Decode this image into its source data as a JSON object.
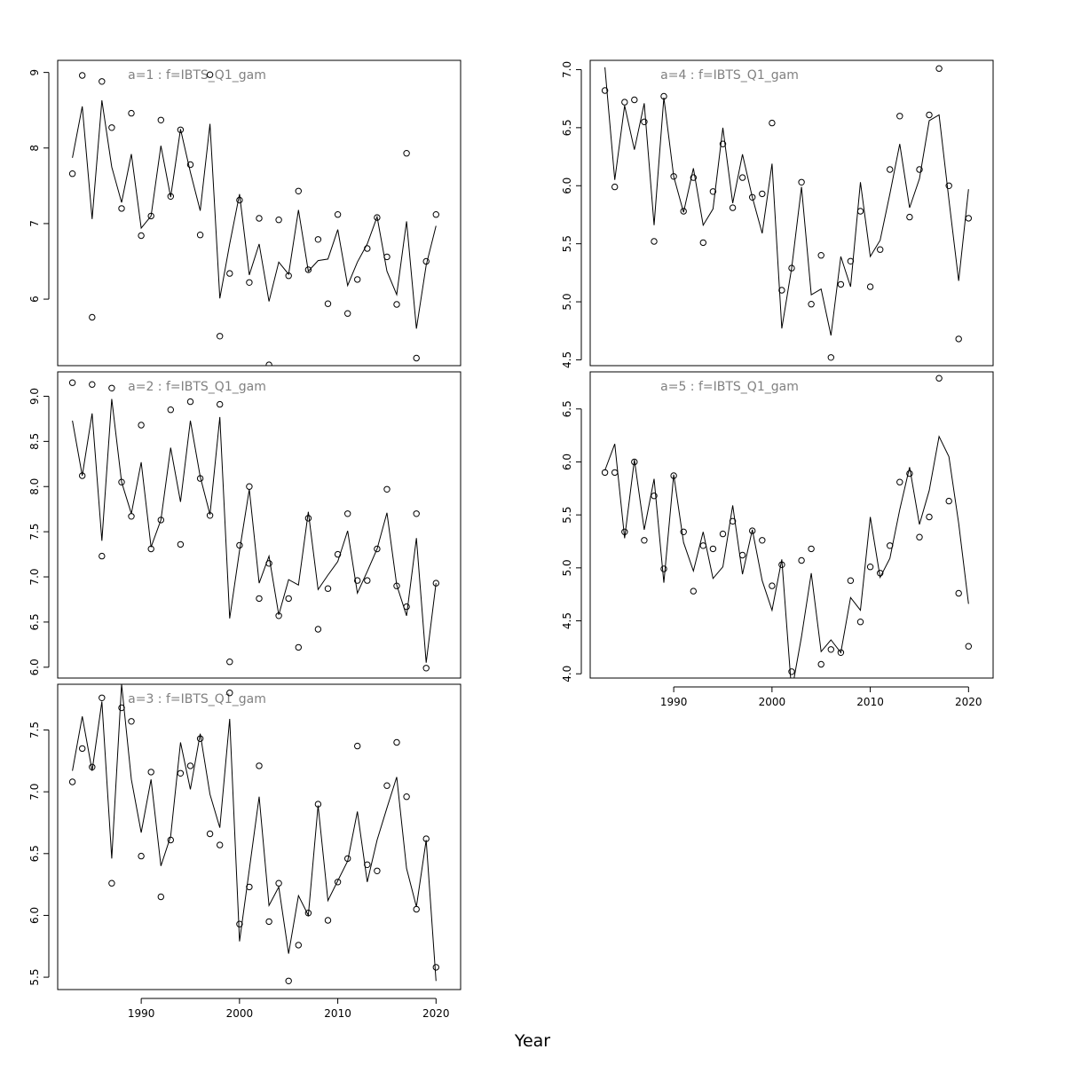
{
  "figure": {
    "xlabel": "Year"
  },
  "chart_data": [
    {
      "type": "line",
      "title": "a=1  :  f=IBTS_Q1_gam",
      "xlim": [
        1981.5,
        2022.5
      ],
      "ylim": [
        5.12,
        9.16
      ],
      "yticks": [
        6,
        7,
        8,
        9
      ],
      "show_xticks": false,
      "x": [
        1983,
        1984,
        1985,
        1986,
        1987,
        1988,
        1989,
        1990,
        1991,
        1992,
        1993,
        1994,
        1995,
        1996,
        1997,
        1998,
        1999,
        2000,
        2001,
        2002,
        2003,
        2004,
        2005,
        2006,
        2007,
        2008,
        2009,
        2010,
        2011,
        2012,
        2013,
        2014,
        2015,
        2016,
        2017,
        2018,
        2019,
        2020
      ],
      "series": [
        {
          "kind": "line",
          "values": [
            7.87,
            8.55,
            7.06,
            8.63,
            7.75,
            7.28,
            7.92,
            6.94,
            7.1,
            8.03,
            7.35,
            8.25,
            7.68,
            7.17,
            8.32,
            6.01,
            6.73,
            7.39,
            6.32,
            6.73,
            5.97,
            6.49,
            6.33,
            7.18,
            6.37,
            6.51,
            6.53,
            6.92,
            6.18,
            6.49,
            6.73,
            7.09,
            6.37,
            6.06,
            7.03,
            5.61,
            6.45,
            6.97
          ]
        },
        {
          "kind": "points",
          "values": [
            7.66,
            8.96,
            5.76,
            8.88,
            8.27,
            7.2,
            8.46,
            6.84,
            7.1,
            8.37,
            7.36,
            8.24,
            7.78,
            6.85,
            8.97,
            5.51,
            6.34,
            7.31,
            6.22,
            7.07,
            5.13,
            7.05,
            6.31,
            7.43,
            6.39,
            6.79,
            5.94,
            7.12,
            5.81,
            6.26,
            6.67,
            7.08,
            6.56,
            5.93,
            7.93,
            5.22,
            6.5,
            7.12
          ]
        }
      ]
    },
    {
      "type": "line",
      "title": "a=2  :  f=IBTS_Q1_gam",
      "xlim": [
        1981.5,
        2022.5
      ],
      "ylim": [
        5.88,
        9.27
      ],
      "yticks": [
        6.0,
        6.5,
        7.0,
        7.5,
        8.0,
        8.5,
        9.0
      ],
      "show_xticks": false,
      "x": [
        1983,
        1984,
        1985,
        1986,
        1987,
        1988,
        1989,
        1990,
        1991,
        1992,
        1993,
        1994,
        1995,
        1996,
        1997,
        1998,
        1999,
        2000,
        2001,
        2002,
        2003,
        2004,
        2005,
        2006,
        2007,
        2008,
        2009,
        2010,
        2011,
        2012,
        2013,
        2014,
        2015,
        2016,
        2017,
        2018,
        2019,
        2020
      ],
      "series": [
        {
          "kind": "line",
          "values": [
            8.73,
            8.12,
            8.81,
            7.4,
            8.97,
            8.05,
            7.7,
            8.27,
            7.33,
            7.63,
            8.43,
            7.83,
            8.73,
            8.11,
            7.69,
            8.77,
            6.54,
            7.29,
            7.97,
            6.93,
            7.23,
            6.58,
            6.97,
            6.91,
            7.72,
            6.86,
            7.02,
            7.17,
            7.51,
            6.82,
            7.06,
            7.31,
            7.71,
            6.91,
            6.57,
            7.43,
            6.05,
            6.93
          ]
        },
        {
          "kind": "points",
          "values": [
            9.15,
            8.12,
            9.13,
            7.23,
            9.09,
            8.05,
            7.67,
            8.68,
            7.31,
            7.63,
            8.85,
            7.36,
            8.94,
            8.09,
            7.68,
            8.91,
            6.06,
            7.35,
            8.0,
            6.76,
            7.15,
            6.57,
            6.76,
            6.22,
            7.65,
            6.42,
            6.87,
            7.25,
            7.7,
            6.96,
            6.96,
            7.31,
            7.97,
            6.9,
            6.67,
            7.7,
            5.99,
            6.93
          ]
        }
      ]
    },
    {
      "type": "line",
      "title": "a=3  :  f=IBTS_Q1_gam",
      "xlim": [
        1981.5,
        2022.5
      ],
      "ylim": [
        5.4,
        7.87
      ],
      "yticks": [
        5.5,
        6.0,
        6.5,
        7.0,
        7.5
      ],
      "show_xticks": true,
      "xticks": [
        1990,
        2000,
        2010,
        2020
      ],
      "x": [
        1983,
        1984,
        1985,
        1986,
        1987,
        1988,
        1989,
        1990,
        1991,
        1992,
        1993,
        1994,
        1995,
        1996,
        1997,
        1998,
        1999,
        2000,
        2001,
        2002,
        2003,
        2004,
        2005,
        2006,
        2007,
        2008,
        2009,
        2010,
        2011,
        2012,
        2013,
        2014,
        2015,
        2016,
        2017,
        2018,
        2019,
        2020
      ],
      "series": [
        {
          "kind": "line",
          "values": [
            7.17,
            7.61,
            7.17,
            7.73,
            6.46,
            7.87,
            7.1,
            6.67,
            7.1,
            6.4,
            6.64,
            7.4,
            7.02,
            7.47,
            6.98,
            6.71,
            7.59,
            5.79,
            6.37,
            6.96,
            6.08,
            6.23,
            5.69,
            6.16,
            6.0,
            6.89,
            6.12,
            6.28,
            6.44,
            6.84,
            6.27,
            6.61,
            6.87,
            7.12,
            6.38,
            6.07,
            6.61,
            5.47
          ]
        },
        {
          "kind": "points",
          "values": [
            7.08,
            7.35,
            7.2,
            7.76,
            6.26,
            7.68,
            7.57,
            6.48,
            7.16,
            6.15,
            6.61,
            7.15,
            7.21,
            7.43,
            6.66,
            6.57,
            7.8,
            5.93,
            6.23,
            7.21,
            5.95,
            6.26,
            5.47,
            5.76,
            6.02,
            6.9,
            5.96,
            6.27,
            6.46,
            7.37,
            6.41,
            6.36,
            7.05,
            7.4,
            6.96,
            6.05,
            6.62,
            5.58
          ]
        }
      ]
    },
    {
      "type": "line",
      "title": "a=4  :  f=IBTS_Q1_gam",
      "xlim": [
        1981.5,
        2022.5
      ],
      "ylim": [
        4.45,
        7.08
      ],
      "yticks": [
        4.5,
        5.0,
        5.5,
        6.0,
        6.5,
        7.0
      ],
      "show_xticks": false,
      "x": [
        1983,
        1984,
        1985,
        1986,
        1987,
        1988,
        1989,
        1990,
        1991,
        1992,
        1993,
        1994,
        1995,
        1996,
        1997,
        1998,
        1999,
        2000,
        2001,
        2002,
        2003,
        2004,
        2005,
        2006,
        2007,
        2008,
        2009,
        2010,
        2011,
        2012,
        2013,
        2014,
        2015,
        2016,
        2017,
        2018,
        2019,
        2020
      ],
      "series": [
        {
          "kind": "line",
          "values": [
            7.02,
            6.05,
            6.69,
            6.31,
            6.71,
            5.66,
            6.76,
            6.08,
            5.77,
            6.15,
            5.66,
            5.8,
            6.5,
            5.85,
            6.27,
            5.9,
            5.59,
            6.19,
            4.77,
            5.29,
            5.99,
            5.06,
            5.11,
            4.71,
            5.39,
            5.13,
            6.03,
            5.39,
            5.53,
            5.93,
            6.36,
            5.81,
            6.06,
            6.56,
            6.61,
            5.88,
            5.18,
            5.97
          ]
        },
        {
          "kind": "points",
          "values": [
            6.82,
            5.99,
            6.72,
            6.74,
            6.55,
            5.52,
            6.77,
            6.08,
            5.78,
            6.07,
            5.51,
            5.95,
            6.36,
            5.81,
            6.07,
            5.9,
            5.93,
            6.54,
            5.1,
            5.29,
            6.03,
            4.98,
            5.4,
            4.52,
            5.15,
            5.35,
            5.78,
            5.13,
            5.45,
            6.14,
            6.6,
            5.73,
            6.14,
            6.61,
            7.01,
            6.0,
            4.68,
            5.72
          ]
        }
      ]
    },
    {
      "type": "line",
      "title": "a=5  :  f=IBTS_Q1_gam",
      "xlim": [
        1981.5,
        2022.5
      ],
      "ylim": [
        3.96,
        6.85
      ],
      "yticks": [
        4.0,
        4.5,
        5.0,
        5.5,
        6.0,
        6.5
      ],
      "show_xticks": true,
      "xticks": [
        1990,
        2000,
        2010,
        2020
      ],
      "x": [
        1983,
        1984,
        1985,
        1986,
        1987,
        1988,
        1989,
        1990,
        1991,
        1992,
        1993,
        1994,
        1995,
        1996,
        1997,
        1998,
        1999,
        2000,
        2001,
        2002,
        2003,
        2004,
        2005,
        2006,
        2007,
        2008,
        2009,
        2010,
        2011,
        2012,
        2013,
        2014,
        2015,
        2016,
        2017,
        2018,
        2019,
        2020
      ],
      "series": [
        {
          "kind": "line",
          "values": [
            5.92,
            6.17,
            5.28,
            6.02,
            5.36,
            5.84,
            4.86,
            5.88,
            5.24,
            4.97,
            5.34,
            4.9,
            5.01,
            5.59,
            4.94,
            5.36,
            4.88,
            4.6,
            5.08,
            3.83,
            4.35,
            4.95,
            4.21,
            4.32,
            4.2,
            4.72,
            4.6,
            5.48,
            4.91,
            5.09,
            5.55,
            5.95,
            5.41,
            5.73,
            6.24,
            6.05,
            5.42,
            4.66
          ]
        },
        {
          "kind": "points",
          "values": [
            5.9,
            5.9,
            5.34,
            6.0,
            5.26,
            5.68,
            4.99,
            5.87,
            5.34,
            4.78,
            5.21,
            5.18,
            5.32,
            5.44,
            5.12,
            5.35,
            5.26,
            4.83,
            5.03,
            4.02,
            5.07,
            5.18,
            4.09,
            4.23,
            4.2,
            4.88,
            4.49,
            5.01,
            4.95,
            5.21,
            5.81,
            5.89,
            5.29,
            5.48,
            6.79,
            5.63,
            4.76,
            4.26
          ]
        }
      ]
    }
  ]
}
